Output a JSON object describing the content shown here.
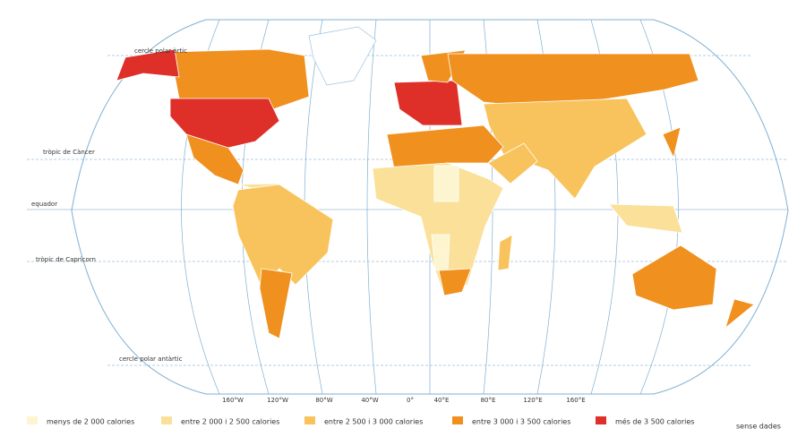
{
  "map": {
    "latitude_labels": [
      "cercle polar àrtic",
      "tròpic de Càncer",
      "equador",
      "tròpic de Capricorn",
      "cercle polar antàrtic"
    ],
    "longitude_labels": [
      "160°W",
      "120°W",
      "80°W",
      "40°W",
      "0°",
      "40°E",
      "80°E",
      "120°E",
      "160°E"
    ]
  },
  "legend": {
    "items": [
      {
        "label": "menys de 2 000 calories",
        "color": "#fdf5cf"
      },
      {
        "label": "entre 2 000 i 2 500 calories",
        "color": "#fbe09a"
      },
      {
        "label": "entre 2 500 i 3 000 calories",
        "color": "#f8c35c"
      },
      {
        "label": "entre 3 000 i 3 500 calories",
        "color": "#f0901f"
      },
      {
        "label": "més de 3 500 calories",
        "color": "#de2f29"
      }
    ],
    "no_data": "sense dades"
  }
}
